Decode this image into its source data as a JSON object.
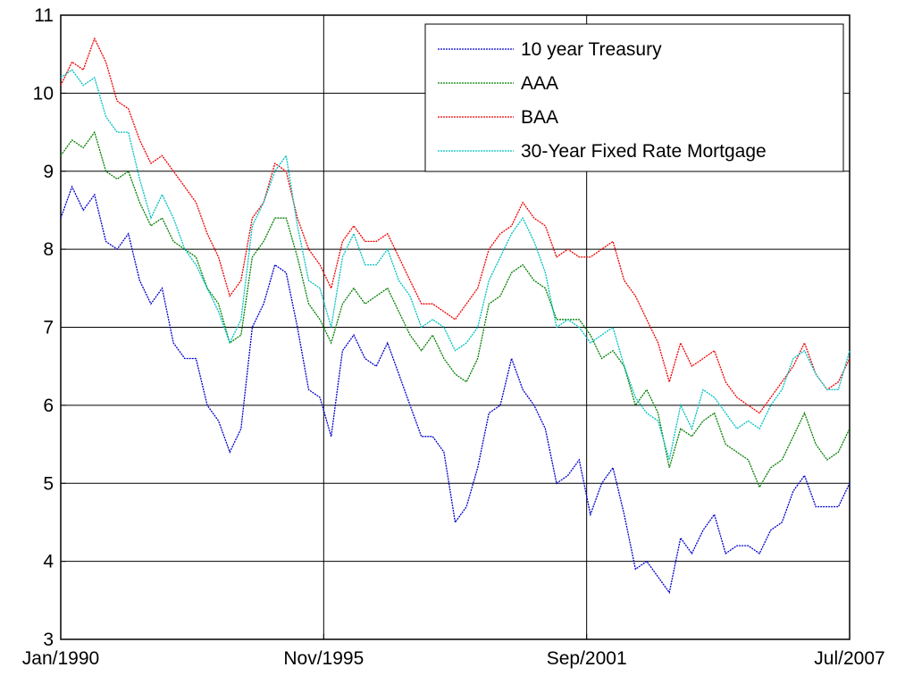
{
  "chart_data": {
    "type": "line",
    "x": [
      1990,
      1990.25,
      1990.5,
      1990.75,
      1991,
      1991.25,
      1991.5,
      1991.75,
      1992,
      1992.25,
      1992.5,
      1992.75,
      1993,
      1993.25,
      1993.5,
      1993.75,
      1994,
      1994.25,
      1994.5,
      1994.75,
      1995,
      1995.25,
      1995.5,
      1995.75,
      1996,
      1996.25,
      1996.5,
      1996.75,
      1997,
      1997.25,
      1997.5,
      1997.75,
      1998,
      1998.25,
      1998.5,
      1998.75,
      1999,
      1999.25,
      1999.5,
      1999.75,
      2000,
      2000.25,
      2000.5,
      2000.75,
      2001,
      2001.25,
      2001.5,
      2001.75,
      2002,
      2002.25,
      2002.5,
      2002.75,
      2003,
      2003.25,
      2003.5,
      2003.75,
      2004,
      2004.25,
      2004.5,
      2004.75,
      2005,
      2005.25,
      2005.5,
      2005.75,
      2006,
      2006.25,
      2006.5,
      2006.75,
      2007,
      2007.25,
      2007.5
    ],
    "series": [
      {
        "name": "10 year Treasury",
        "color": "#0000cc",
        "values": [
          8.4,
          8.8,
          8.5,
          8.7,
          8.1,
          8.0,
          8.2,
          7.6,
          7.3,
          7.5,
          6.8,
          6.6,
          6.6,
          6.0,
          5.8,
          5.4,
          5.7,
          7.0,
          7.3,
          7.8,
          7.7,
          7.0,
          6.2,
          6.1,
          5.6,
          6.7,
          6.9,
          6.6,
          6.5,
          6.8,
          6.4,
          6.0,
          5.6,
          5.6,
          5.4,
          4.5,
          4.7,
          5.2,
          5.9,
          6.0,
          6.6,
          6.2,
          6.0,
          5.7,
          5.0,
          5.1,
          5.3,
          4.6,
          5.0,
          5.2,
          4.6,
          3.9,
          4.0,
          3.8,
          3.6,
          4.3,
          4.1,
          4.4,
          4.6,
          4.1,
          4.2,
          4.2,
          4.1,
          4.4,
          4.5,
          4.9,
          5.1,
          4.7,
          4.7,
          4.7,
          5.0
        ]
      },
      {
        "name": "AAA",
        "color": "#008000",
        "values": [
          9.2,
          9.4,
          9.3,
          9.5,
          9.0,
          8.9,
          9.0,
          8.6,
          8.3,
          8.4,
          8.1,
          8.0,
          7.9,
          7.5,
          7.3,
          6.8,
          6.9,
          7.9,
          8.1,
          8.4,
          8.4,
          7.9,
          7.3,
          7.1,
          6.8,
          7.3,
          7.5,
          7.3,
          7.4,
          7.5,
          7.2,
          6.9,
          6.7,
          6.9,
          6.6,
          6.4,
          6.3,
          6.6,
          7.3,
          7.4,
          7.7,
          7.8,
          7.6,
          7.5,
          7.1,
          7.1,
          7.1,
          6.9,
          6.6,
          6.7,
          6.5,
          6.0,
          6.2,
          5.9,
          5.2,
          5.7,
          5.6,
          5.8,
          5.9,
          5.5,
          5.4,
          5.3,
          4.95,
          5.2,
          5.3,
          5.6,
          5.9,
          5.5,
          5.3,
          5.4,
          5.7
        ]
      },
      {
        "name": "BAA",
        "color": "#ee0000",
        "values": [
          10.1,
          10.4,
          10.3,
          10.7,
          10.4,
          9.9,
          9.8,
          9.4,
          9.1,
          9.2,
          9.0,
          8.8,
          8.6,
          8.2,
          7.9,
          7.4,
          7.6,
          8.4,
          8.6,
          9.1,
          9.0,
          8.4,
          8.0,
          7.8,
          7.5,
          8.1,
          8.3,
          8.1,
          8.1,
          8.2,
          7.9,
          7.6,
          7.3,
          7.3,
          7.2,
          7.1,
          7.3,
          7.5,
          8.0,
          8.2,
          8.3,
          8.6,
          8.4,
          8.3,
          7.9,
          8.0,
          7.9,
          7.9,
          8.0,
          8.1,
          7.6,
          7.4,
          7.1,
          6.8,
          6.3,
          6.8,
          6.5,
          6.6,
          6.7,
          6.3,
          6.1,
          6.0,
          5.9,
          6.1,
          6.3,
          6.5,
          6.8,
          6.4,
          6.2,
          6.3,
          6.6
        ]
      },
      {
        "name": "30-Year Fixed Rate Mortgage",
        "color": "#00c0c0",
        "values": [
          10.2,
          10.3,
          10.1,
          10.2,
          9.7,
          9.5,
          9.5,
          8.9,
          8.4,
          8.7,
          8.4,
          8.0,
          7.8,
          7.5,
          7.2,
          6.8,
          7.1,
          8.3,
          8.6,
          9.0,
          9.2,
          8.3,
          7.6,
          7.5,
          7.0,
          7.9,
          8.2,
          7.8,
          7.8,
          8.0,
          7.6,
          7.4,
          7.0,
          7.1,
          7.0,
          6.7,
          6.8,
          7.0,
          7.6,
          7.9,
          8.2,
          8.4,
          8.1,
          7.7,
          7.0,
          7.1,
          7.0,
          6.8,
          6.9,
          7.0,
          6.5,
          6.1,
          5.9,
          5.8,
          5.3,
          6.0,
          5.7,
          6.2,
          6.1,
          5.9,
          5.7,
          5.8,
          5.7,
          6.0,
          6.2,
          6.6,
          6.7,
          6.4,
          6.2,
          6.2,
          6.7
        ]
      }
    ],
    "xlim": [
      1990,
      2007.5
    ],
    "xticks": [
      {
        "value": 1990,
        "label": "Jan/1990"
      },
      {
        "value": 1995.8333,
        "label": "Nov/1995"
      },
      {
        "value": 2001.6667,
        "label": "Sep/2001"
      },
      {
        "value": 2007.5,
        "label": "Jul/2007"
      }
    ],
    "ylim": [
      3,
      11
    ],
    "yticks": [
      3,
      4,
      5,
      6,
      7,
      8,
      9,
      10,
      11
    ],
    "grid": true,
    "legend": "top-right"
  }
}
